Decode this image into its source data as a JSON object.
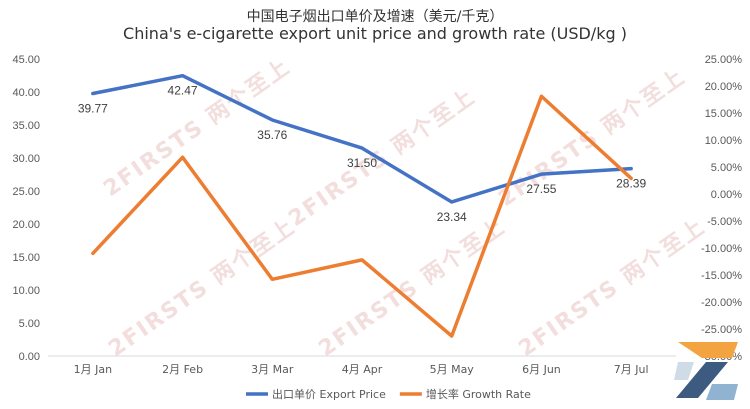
{
  "chart_data": {
    "type": "line",
    "title_zh": "中国电子烟出口单价及增速（美元/千克）",
    "title": "China's e-cigarette export unit price and growth rate (USD/kg )",
    "categories": [
      "1月 Jan",
      "2月 Feb",
      "3月 Mar",
      "4月 Apr",
      "5月 May",
      "6月 Jun",
      "7月 Jul"
    ],
    "y_left": {
      "ticks": [
        "0.00",
        "5.00",
        "10.00",
        "15.00",
        "20.00",
        "25.00",
        "30.00",
        "35.00",
        "40.00",
        "45.00"
      ],
      "ylim": [
        0,
        45
      ]
    },
    "y_right": {
      "ticks": [
        "-30.00%",
        "-25.00%",
        "-20.00%",
        "-15.00%",
        "-10.00%",
        "-5.00%",
        "0.00%",
        "5.00%",
        "10.00%",
        "15.00%",
        "20.00%",
        "25.00%"
      ],
      "ylim": [
        -30,
        25
      ]
    },
    "series": [
      {
        "name": "出口单价 Export Price",
        "axis": "left",
        "color": "#4472c4",
        "values": [
          39.77,
          42.47,
          35.76,
          31.5,
          23.34,
          27.55,
          28.39
        ],
        "labels": [
          "39.77",
          "42.47",
          "35.76",
          "31.50",
          "23.34",
          "27.55",
          "28.39"
        ]
      },
      {
        "name": "增长率 Growth Rate",
        "axis": "right",
        "color": "#ed7d31",
        "values": [
          -11.0,
          6.8,
          -15.8,
          -12.2,
          -26.3,
          18.1,
          2.9
        ]
      }
    ],
    "legend_position": "bottom",
    "grid": false
  },
  "watermark": {
    "brand": "2FIRSTS",
    "zh": "两个至上"
  }
}
